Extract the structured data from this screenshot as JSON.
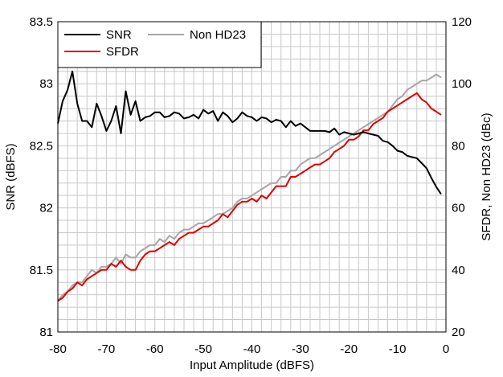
{
  "chart_data": {
    "type": "line",
    "xlabel": "Input Amplitude (dBFS)",
    "ylabel_left": "SNR (dBFS)",
    "ylabel_right": "SFDR, Non HD23 (dBc)",
    "xlim": [
      -80,
      0
    ],
    "ylim_left": [
      81,
      83.5
    ],
    "ylim_right": [
      20,
      120
    ],
    "x_ticks": [
      "-80",
      "-70",
      "-60",
      "-50",
      "-40",
      "-30",
      "-20",
      "-10",
      "0"
    ],
    "y_left_ticks": [
      "81",
      "81.5",
      "82",
      "82.5",
      "83",
      "83.5"
    ],
    "y_right_ticks": [
      "20",
      "40",
      "60",
      "80",
      "100",
      "120"
    ],
    "grid": true,
    "legend_position": "top-left",
    "series": [
      {
        "name": "SNR",
        "axis": "left",
        "color": "#000000",
        "x": [
          -80,
          -79,
          -78,
          -77,
          -76,
          -75,
          -74,
          -73,
          -72,
          -71,
          -70,
          -69,
          -68,
          -67,
          -66,
          -65,
          -64,
          -63,
          -62,
          -61,
          -60,
          -59,
          -58,
          -57,
          -56,
          -55,
          -54,
          -53,
          -52,
          -51,
          -50,
          -49,
          -48,
          -47,
          -46,
          -45,
          -44,
          -43,
          -42,
          -41,
          -40,
          -39,
          -38,
          -37,
          -36,
          -35,
          -34,
          -33,
          -32,
          -31,
          -30,
          -29,
          -28,
          -27,
          -26,
          -25,
          -24,
          -23,
          -22,
          -21,
          -20,
          -19,
          -18,
          -17,
          -16,
          -15,
          -14,
          -13,
          -12,
          -11,
          -10,
          -9,
          -8,
          -7,
          -6,
          -5,
          -4,
          -3,
          -2,
          -1
        ],
        "values": [
          82.68,
          82.86,
          82.95,
          83.1,
          82.84,
          82.7,
          82.7,
          82.65,
          82.84,
          82.74,
          82.62,
          82.7,
          82.82,
          82.6,
          82.94,
          82.75,
          82.86,
          82.7,
          82.73,
          82.74,
          82.77,
          82.77,
          82.73,
          82.74,
          82.77,
          82.76,
          82.72,
          82.73,
          82.75,
          82.72,
          82.79,
          82.76,
          82.78,
          82.7,
          82.77,
          82.74,
          82.69,
          82.72,
          82.77,
          82.74,
          82.73,
          82.7,
          82.73,
          82.72,
          82.69,
          82.71,
          82.7,
          82.65,
          82.7,
          82.66,
          82.68,
          82.65,
          82.62,
          82.62,
          82.62,
          82.62,
          82.61,
          82.64,
          82.59,
          82.61,
          82.6,
          82.59,
          82.6,
          82.61,
          82.6,
          82.59,
          82.58,
          82.54,
          82.53,
          82.5,
          82.46,
          82.45,
          82.42,
          82.41,
          82.4,
          82.36,
          82.32,
          82.24,
          82.17,
          82.11
        ]
      },
      {
        "name": "SFDR",
        "axis": "right",
        "color": "#e00000",
        "x": [
          -80,
          -79,
          -78,
          -77,
          -76,
          -75,
          -74,
          -73,
          -72,
          -71,
          -70,
          -69,
          -68,
          -67,
          -66,
          -65,
          -64,
          -63,
          -62,
          -61,
          -60,
          -59,
          -58,
          -57,
          -56,
          -55,
          -54,
          -53,
          -52,
          -51,
          -50,
          -49,
          -48,
          -47,
          -46,
          -45,
          -44,
          -43,
          -42,
          -41,
          -40,
          -39,
          -38,
          -37,
          -36,
          -35,
          -34,
          -33,
          -32,
          -31,
          -30,
          -29,
          -28,
          -27,
          -26,
          -25,
          -24,
          -23,
          -22,
          -21,
          -20,
          -19,
          -18,
          -17,
          -16,
          -15,
          -14,
          -13,
          -12,
          -11,
          -10,
          -9,
          -8,
          -7,
          -6,
          -5,
          -4,
          -3,
          -2,
          -1
        ],
        "values": [
          30,
          31,
          33,
          34,
          36,
          35,
          37,
          38,
          39,
          40,
          40,
          42,
          41,
          43,
          41,
          40,
          40,
          43,
          45,
          46,
          46,
          47,
          48,
          49,
          48,
          50,
          51,
          52,
          52,
          53,
          54,
          54,
          55,
          56,
          58,
          57,
          59,
          61,
          62,
          62,
          63,
          62,
          64,
          63,
          65,
          67,
          67,
          67,
          70,
          70,
          71,
          72,
          73,
          74,
          74,
          75,
          76,
          78,
          79,
          80,
          82,
          82,
          83,
          85,
          85,
          87,
          88,
          89,
          91,
          92,
          93,
          94,
          95,
          96,
          97,
          95,
          94,
          92,
          91,
          90
        ]
      },
      {
        "name": "Non HD23",
        "axis": "right",
        "color": "#a6a6a6",
        "x": [
          -80,
          -79,
          -78,
          -77,
          -76,
          -75,
          -74,
          -73,
          -72,
          -71,
          -70,
          -69,
          -68,
          -67,
          -66,
          -65,
          -64,
          -63,
          -62,
          -61,
          -60,
          -59,
          -58,
          -57,
          -56,
          -55,
          -54,
          -53,
          -52,
          -51,
          -50,
          -49,
          -48,
          -47,
          -46,
          -45,
          -44,
          -43,
          -42,
          -41,
          -40,
          -39,
          -38,
          -37,
          -36,
          -35,
          -34,
          -33,
          -32,
          -31,
          -30,
          -29,
          -28,
          -27,
          -26,
          -25,
          -24,
          -23,
          -22,
          -21,
          -20,
          -19,
          -18,
          -17,
          -16,
          -15,
          -14,
          -13,
          -12,
          -11,
          -10,
          -9,
          -8,
          -7,
          -6,
          -5,
          -4,
          -3,
          -2,
          -1
        ],
        "values": [
          30,
          32,
          33,
          35,
          36,
          36,
          38,
          40,
          39,
          41,
          41,
          42,
          44,
          42,
          45,
          44,
          44,
          46,
          47,
          48,
          48,
          50,
          49,
          51,
          50,
          52,
          53,
          53,
          54,
          55,
          55,
          56,
          57,
          58,
          58,
          59,
          60,
          62,
          63,
          63,
          64,
          65,
          66,
          67,
          68,
          68,
          70,
          70,
          72,
          72,
          74,
          75,
          76,
          76,
          77,
          78,
          79,
          80,
          81,
          82,
          83,
          84,
          85,
          86,
          87,
          88,
          89,
          90,
          91,
          93,
          95,
          96,
          98,
          99,
          100,
          101,
          101,
          102,
          103,
          102
        ]
      }
    ]
  }
}
